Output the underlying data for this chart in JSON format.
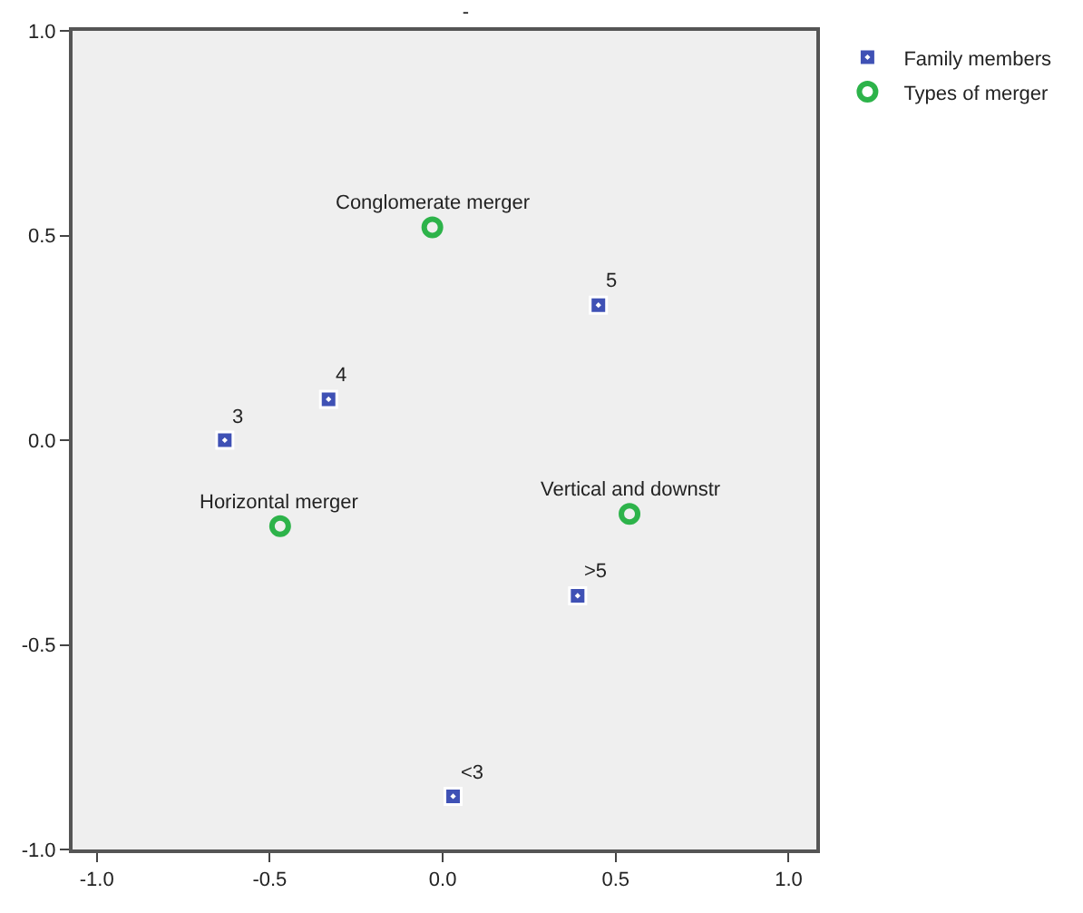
{
  "chart_data": {
    "type": "scatter",
    "title": "-",
    "series": [
      {
        "name": "Family members",
        "color": "#3f51b5",
        "marker": "square",
        "x": [
          -0.63,
          -0.33,
          0.45,
          0.39,
          0.03
        ],
        "values": [
          0.0,
          0.1,
          0.33,
          -0.38,
          -0.87
        ]
      },
      {
        "name": "Types of merger",
        "color": "#2db34a",
        "marker": "circle",
        "x": [
          -0.03,
          -0.47,
          0.54
        ],
        "values": [
          0.52,
          -0.21,
          -0.18
        ]
      }
    ],
    "annotations": [
      {
        "text": "3",
        "x": -0.63,
        "y": 0.0
      },
      {
        "text": "4",
        "x": -0.33,
        "y": 0.1
      },
      {
        "text": "5",
        "x": 0.45,
        "y": 0.33
      },
      {
        "text": ">5",
        "x": 0.39,
        "y": -0.38
      },
      {
        "text": "<3",
        "x": 0.03,
        "y": -0.87
      },
      {
        "text": "Conglomerate merger",
        "x": -0.03,
        "y": 0.52
      },
      {
        "text": "Horizontal merger",
        "x": -0.47,
        "y": -0.21
      },
      {
        "text": "Vertical and downstr",
        "x": 0.54,
        "y": -0.18
      }
    ],
    "xlim": [
      -1.07,
      1.08
    ],
    "xticks": [
      {
        "value": -1.0,
        "label": "-1.0"
      },
      {
        "value": -0.5,
        "label": "-0.5"
      },
      {
        "value": 0.0,
        "label": "0.0"
      },
      {
        "value": 0.5,
        "label": "0.5"
      },
      {
        "value": 1.0,
        "label": "1.0"
      }
    ],
    "ylim": [
      -1.0,
      1.0
    ],
    "yticks": [
      {
        "value": -1.0,
        "label": "-1.0"
      },
      {
        "value": -0.5,
        "label": "-0.5"
      },
      {
        "value": 0.0,
        "label": "0.0"
      },
      {
        "value": 0.5,
        "label": "0.5"
      },
      {
        "value": 1.0,
        "label": "1.0"
      }
    ],
    "grid": false,
    "legend": "top right"
  }
}
